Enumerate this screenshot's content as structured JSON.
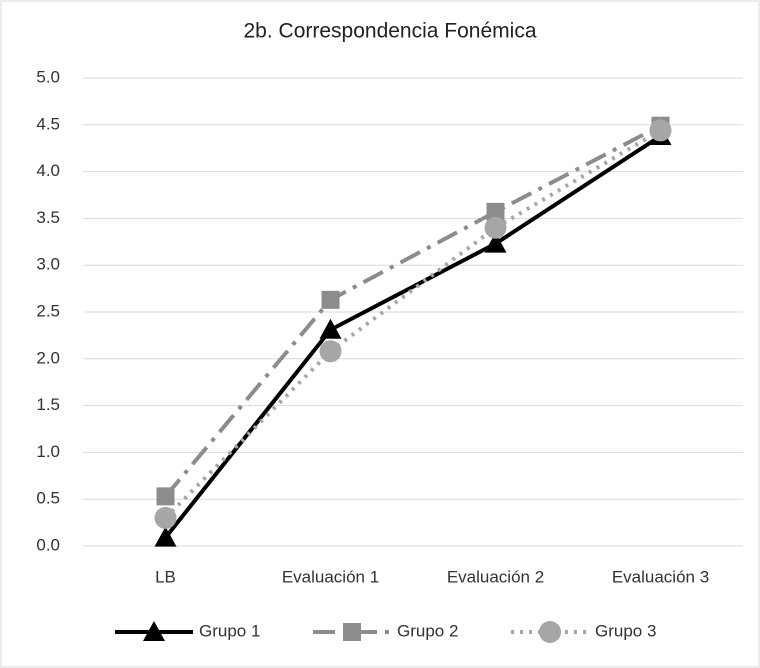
{
  "chart_data": {
    "type": "line",
    "title": "2b. Correspondencia Fonémica",
    "categories": [
      "LB",
      "Evaluación 1",
      "Evaluación 2",
      "Evaluación 3"
    ],
    "series": [
      {
        "name": "Grupo 1",
        "color": "#000000",
        "line_style": "solid",
        "marker": "triangle",
        "values": [
          0.09,
          2.31,
          3.23,
          4.38
        ]
      },
      {
        "name": "Grupo 2",
        "color": "#8c8c8c",
        "line_style": "dash-dot",
        "marker": "square",
        "values": [
          0.53,
          2.63,
          3.57,
          4.49
        ]
      },
      {
        "name": "Grupo 3",
        "color": "#a6a6a6",
        "line_style": "dotted",
        "marker": "circle",
        "values": [
          0.3,
          2.08,
          3.4,
          4.44
        ]
      }
    ],
    "ylim": [
      0,
      5
    ],
    "yticks": [
      {
        "value": 0,
        "label": "0.0"
      },
      0.5,
      {
        "value": 1,
        "label": "1.0"
      },
      1.5,
      {
        "value": 2,
        "label": "2.0"
      },
      2.5,
      {
        "value": 3,
        "label": "3.0"
      },
      3.5,
      {
        "value": 4,
        "label": "4.0"
      },
      4.5,
      {
        "value": 5,
        "label": "5.0"
      }
    ],
    "grid": true,
    "legend": "bottom"
  }
}
